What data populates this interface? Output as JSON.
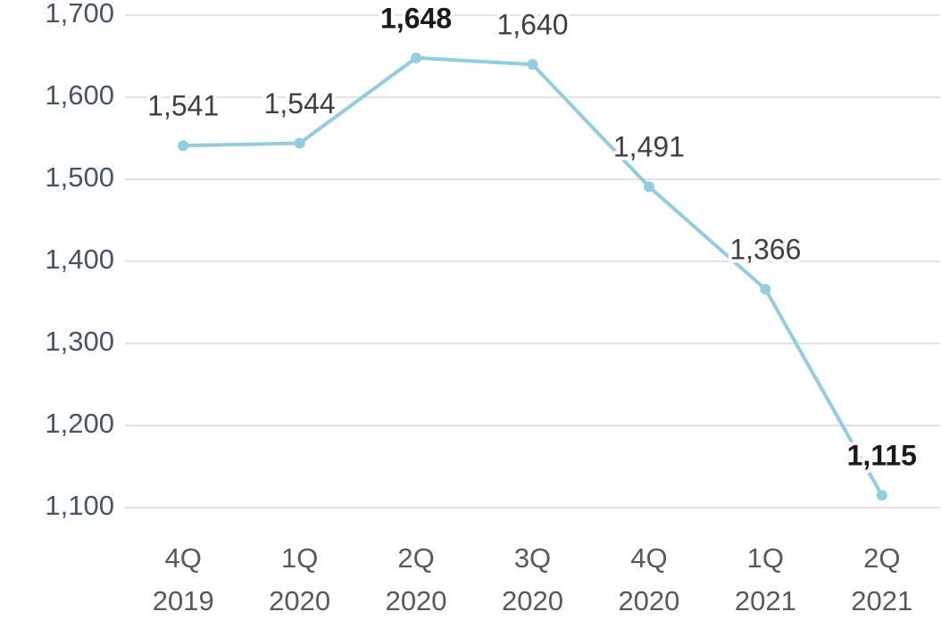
{
  "chart_data": {
    "type": "line",
    "categories": [
      [
        "4Q",
        "2019"
      ],
      [
        "1Q",
        "2020"
      ],
      [
        "2Q",
        "2020"
      ],
      [
        "3Q",
        "2020"
      ],
      [
        "4Q",
        "2020"
      ],
      [
        "1Q",
        "2021"
      ],
      [
        "2Q",
        "2021"
      ]
    ],
    "series": [
      {
        "color": "#92cddf",
        "values": [
          1541,
          1544,
          1648,
          1640,
          1491,
          1366,
          1115
        ],
        "value_labels": [
          "1,541",
          "1,544",
          "1,648",
          "1,640",
          "1,491",
          "1,366",
          "1,115"
        ],
        "value_label_bold": [
          false,
          false,
          true,
          false,
          false,
          false,
          true
        ]
      }
    ],
    "ylim": [
      1100,
      1700
    ],
    "yticks": [
      {
        "value": 1100,
        "label": "1,100"
      },
      {
        "value": 1200,
        "label": "1,200"
      },
      {
        "value": 1300,
        "label": "1,300"
      },
      {
        "value": 1400,
        "label": "1,400"
      },
      {
        "value": 1500,
        "label": "1,500"
      },
      {
        "value": 1600,
        "label": "1,600"
      },
      {
        "value": 1700,
        "label": "1,700"
      }
    ],
    "grid": true
  }
}
